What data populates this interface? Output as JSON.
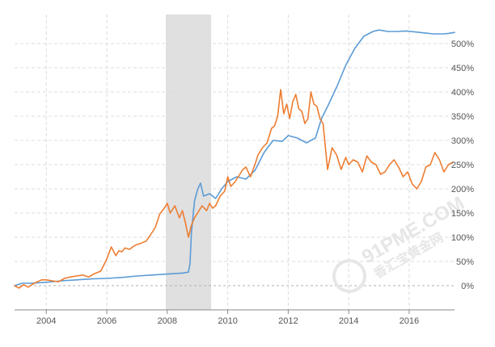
{
  "chart_data": {
    "type": "line",
    "title": "",
    "xlabel": "",
    "ylabel": "",
    "xlim": [
      2002.95,
      2017.5
    ],
    "ylim": [
      -50,
      560
    ],
    "x_ticks": [
      "2004",
      "2006",
      "2008",
      "2010",
      "2012",
      "2014",
      "2016"
    ],
    "x_tick_values": [
      2004,
      2006,
      2008,
      2010,
      2012,
      2014,
      2016
    ],
    "y_ticks": [
      "0%",
      "50%",
      "100%",
      "150%",
      "200%",
      "250%",
      "300%",
      "350%",
      "400%",
      "450%",
      "500%"
    ],
    "y_tick_values": [
      0,
      50,
      100,
      150,
      200,
      250,
      300,
      350,
      400,
      450,
      500
    ],
    "grid": true,
    "legend": "none",
    "recession_band": [
      2007.95,
      2009.45
    ],
    "series": [
      {
        "color": "#5b9bd5",
        "x": [
          2002.95,
          2003.2,
          2003.5,
          2004.0,
          2004.5,
          2005.0,
          2005.5,
          2006.0,
          2006.5,
          2007.0,
          2007.5,
          2008.0,
          2008.5,
          2008.7,
          2008.75,
          2008.8,
          2008.9,
          2009.0,
          2009.1,
          2009.2,
          2009.4,
          2009.6,
          2009.8,
          2010.0,
          2010.3,
          2010.6,
          2010.9,
          2011.2,
          2011.5,
          2011.8,
          2012.0,
          2012.3,
          2012.6,
          2012.9,
          2013.1,
          2013.3,
          2013.6,
          2013.9,
          2014.2,
          2014.5,
          2014.8,
          2015.0,
          2015.3,
          2015.6,
          2015.9,
          2016.2,
          2016.5,
          2016.8,
          2017.1,
          2017.3,
          2017.5
        ],
        "y": [
          0,
          5,
          5,
          7,
          10,
          12,
          14,
          15,
          17,
          20,
          22,
          24,
          26,
          28,
          45,
          110,
          175,
          198,
          212,
          185,
          190,
          180,
          200,
          215,
          225,
          220,
          238,
          275,
          300,
          298,
          310,
          305,
          295,
          305,
          345,
          370,
          410,
          455,
          490,
          515,
          525,
          528,
          525,
          525,
          526,
          524,
          522,
          520,
          520,
          521,
          523
        ]
      },
      {
        "color": "#ed7d31",
        "x": [
          2002.95,
          2003.1,
          2003.25,
          2003.4,
          2003.55,
          2003.7,
          2003.85,
          2004.0,
          2004.2,
          2004.4,
          2004.6,
          2004.8,
          2005.0,
          2005.2,
          2005.4,
          2005.6,
          2005.8,
          2006.0,
          2006.15,
          2006.3,
          2006.4,
          2006.5,
          2006.6,
          2006.75,
          2006.9,
          2007.0,
          2007.15,
          2007.3,
          2007.45,
          2007.6,
          2007.75,
          2007.9,
          2008.0,
          2008.1,
          2008.25,
          2008.4,
          2008.5,
          2008.6,
          2008.7,
          2008.8,
          2008.9,
          2009.0,
          2009.15,
          2009.3,
          2009.4,
          2009.5,
          2009.6,
          2009.75,
          2009.9,
          2010.0,
          2010.1,
          2010.25,
          2010.4,
          2010.5,
          2010.6,
          2010.75,
          2010.9,
          2011.0,
          2011.15,
          2011.3,
          2011.45,
          2011.55,
          2011.65,
          2011.75,
          2011.85,
          2011.95,
          2012.05,
          2012.15,
          2012.25,
          2012.35,
          2012.45,
          2012.55,
          2012.65,
          2012.75,
          2012.85,
          2012.95,
          2013.05,
          2013.15,
          2013.3,
          2013.45,
          2013.6,
          2013.75,
          2013.9,
          2014.0,
          2014.15,
          2014.3,
          2014.45,
          2014.6,
          2014.75,
          2014.9,
          2015.05,
          2015.2,
          2015.35,
          2015.5,
          2015.65,
          2015.8,
          2015.95,
          2016.1,
          2016.25,
          2016.4,
          2016.55,
          2016.7,
          2016.85,
          2017.0,
          2017.15,
          2017.3,
          2017.45
        ],
        "y": [
          0,
          -5,
          2,
          -3,
          3,
          8,
          12,
          12,
          10,
          8,
          15,
          18,
          20,
          22,
          18,
          25,
          30,
          55,
          80,
          62,
          72,
          70,
          78,
          75,
          82,
          85,
          88,
          92,
          105,
          120,
          148,
          160,
          170,
          150,
          165,
          140,
          155,
          130,
          100,
          125,
          140,
          150,
          165,
          155,
          170,
          160,
          165,
          185,
          195,
          225,
          205,
          215,
          230,
          240,
          245,
          225,
          250,
          270,
          285,
          295,
          325,
          330,
          350,
          405,
          355,
          375,
          345,
          380,
          395,
          365,
          360,
          335,
          345,
          400,
          375,
          370,
          345,
          335,
          240,
          285,
          270,
          240,
          265,
          250,
          260,
          255,
          235,
          268,
          255,
          250,
          230,
          235,
          250,
          260,
          245,
          225,
          235,
          210,
          200,
          215,
          245,
          250,
          275,
          260,
          235,
          250,
          255
        ]
      }
    ]
  },
  "watermark": {
    "primary": "91PME.COM",
    "secondary": "香汇宝黄金网"
  }
}
